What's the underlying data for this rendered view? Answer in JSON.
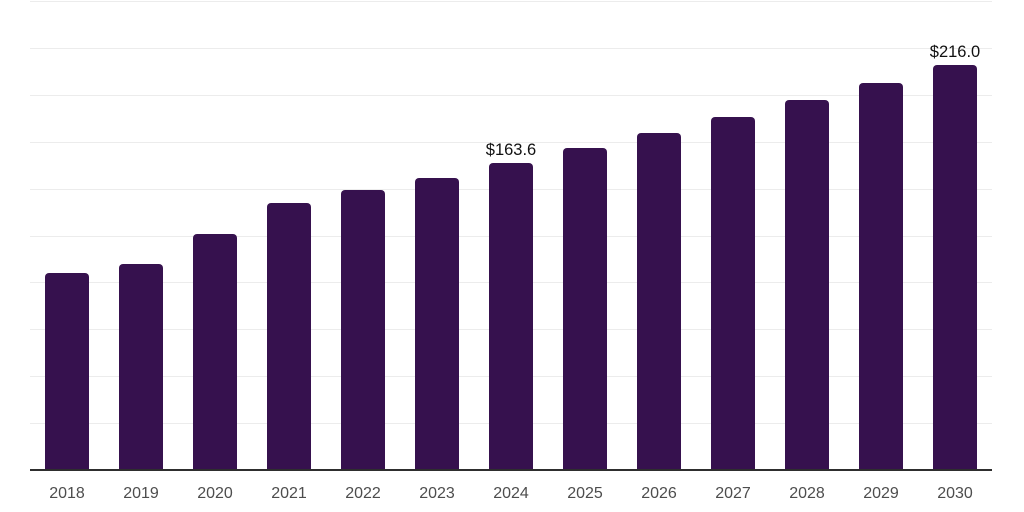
{
  "chart_data": {
    "type": "bar",
    "title": "",
    "xlabel": "",
    "ylabel": "",
    "categories": [
      "2018",
      "2019",
      "2020",
      "2021",
      "2022",
      "2023",
      "2024",
      "2025",
      "2026",
      "2027",
      "2028",
      "2029",
      "2030"
    ],
    "values": [
      104.8,
      109.7,
      125.9,
      142.5,
      149.1,
      155.9,
      163.6,
      171.5,
      179.7,
      187.9,
      197.2,
      206.4,
      216.0
    ],
    "data_labels": [
      {
        "category": "2024",
        "text": "$163.6"
      },
      {
        "category": "2030",
        "text": "$216.0"
      }
    ],
    "ylim": [
      0,
      250
    ],
    "grid_step": 25,
    "grid": "horizontal-only",
    "legend": "none",
    "y_axis_labels": "none",
    "colors": {
      "bar": "#36114e",
      "gridline": "#ececec",
      "axis_line": "#2e2e2e",
      "tick_label": "#4d4d4d",
      "data_label": "#111111",
      "background": "#ffffff"
    }
  }
}
